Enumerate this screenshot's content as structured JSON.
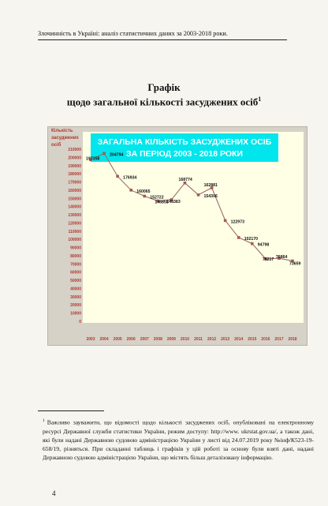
{
  "running_head": "Злочинність в Україні: аналіз статистичних даних за 2003-2018 роки.",
  "heading": {
    "line1": "Графік",
    "line2": "щодо загальної кількості засуджених осіб",
    "footnote_mark": "1"
  },
  "chart_data": {
    "type": "line",
    "title": [
      "ЗАГАЛЬНА КІЛЬКІСТЬ ЗАСУДЖЕНИХ ОСІБ",
      "ЗА ПЕРІОД 2003 - 2018 РОКИ"
    ],
    "ylabel": [
      "Кількість",
      "засуджених",
      "осіб"
    ],
    "xlabel": "",
    "categories": [
      "2003",
      "2004",
      "2005",
      "2006",
      "2007",
      "2008",
      "2009",
      "2010",
      "2011",
      "2012",
      "2013",
      "2014",
      "2015",
      "2016",
      "2017",
      "2018"
    ],
    "series": [
      {
        "values": [
          197158,
          204794,
          176934,
          160065,
          152722,
          146858,
          148383,
          168774,
          154306,
          162881,
          122973,
          102170,
          94798,
          76217,
          76864,
          73659
        ],
        "labels": [
          "197158",
          "204794",
          "176934",
          "160065",
          "152722",
          "146858",
          "148383",
          "168774",
          "154306",
          "162881",
          "122973",
          "102170",
          "94798",
          "76217",
          "76864",
          "73659"
        ]
      }
    ],
    "ylim": [
      0,
      210000
    ],
    "ytick_step": 10000,
    "yticks": [
      "0",
      "10000",
      "20000",
      "30000",
      "40000",
      "50000",
      "60000",
      "70000",
      "80000",
      "90000",
      "100000",
      "110000",
      "120000",
      "130000",
      "140000",
      "150000",
      "160000",
      "170000",
      "180000",
      "190000",
      "200000",
      "210000"
    ],
    "grid": false,
    "colors": {
      "frame_bg": "#d6d2c8",
      "plot_bg": "#ffffe6",
      "title_box_bg": "#00e6ec",
      "title_text": "#ffffff",
      "line": "#9a6d6a",
      "marker": "#a65a52",
      "axis_text": "#b1372f",
      "data_label": "#111111"
    }
  },
  "footnote": {
    "mark": "1",
    "text": "Важливо зауважити, що відомості щодо кількості засуджених осіб, опубліковані на електронному ресурсі Державної служби статистики України, режим доступу: http://www. ukrstat.gov.ua/, а також дані, які були надані Державною судовою адміністрацією України у листі від 24.07.2019 року №інф/К523-19-658/19, різняться. При складанні таблиць і графіків у цій роботі за основу були взяті дані, надані Державною судовою адміністрацією України, що містять більш деталізовану інформацію."
  },
  "page_number": "4"
}
